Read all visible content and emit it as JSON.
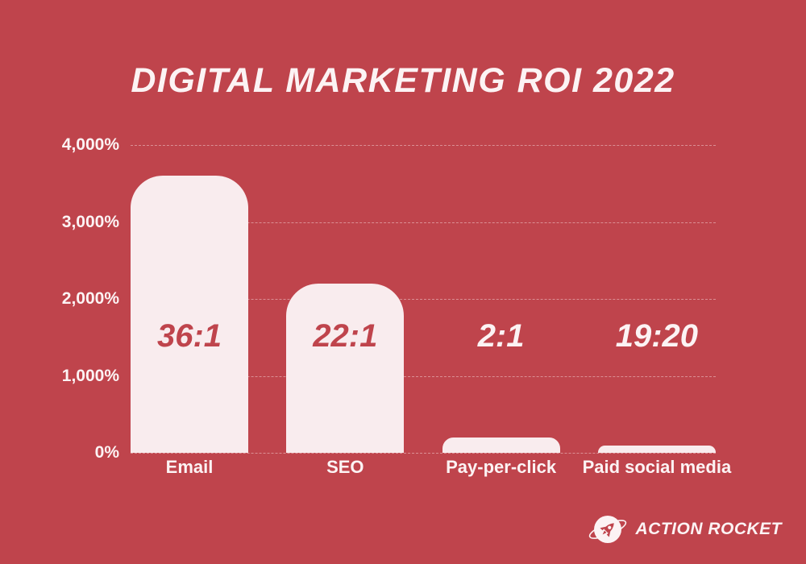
{
  "title": "DIGITAL MARKETING ROI 2022",
  "footer": {
    "brand": "ACTION ROCKET",
    "icon": "rocket-in-circle-with-orbit"
  },
  "colors": {
    "background": "#bf444c",
    "bar_fill": "#f9ecee",
    "text_light": "#fcf3f4",
    "ratio_label_red": "#bf444c",
    "gridline": "rgba(253,236,238,0.45)"
  },
  "chart_data": {
    "type": "bar",
    "title": "DIGITAL MARKETING ROI 2022",
    "xlabel": "",
    "ylabel": "",
    "categories": [
      "Email",
      "SEO",
      "Pay-per-click",
      "Paid social media"
    ],
    "values": [
      3600,
      2200,
      200,
      95
    ],
    "bar_labels": [
      "36:1",
      "22:1",
      "2:1",
      "19:20"
    ],
    "bar_label_colors": [
      "#bf444c",
      "#bf444c",
      "#fcf3f4",
      "#fcf3f4"
    ],
    "ylim": [
      0,
      4000
    ],
    "yticks": [
      {
        "value": 4000,
        "label": "4,000%"
      },
      {
        "value": 3000,
        "label": "3,000%"
      },
      {
        "value": 2000,
        "label": "2,000%"
      },
      {
        "value": 1000,
        "label": "1,000%"
      },
      {
        "value": 0,
        "label": "0%"
      }
    ],
    "grid": true,
    "legend": false
  }
}
